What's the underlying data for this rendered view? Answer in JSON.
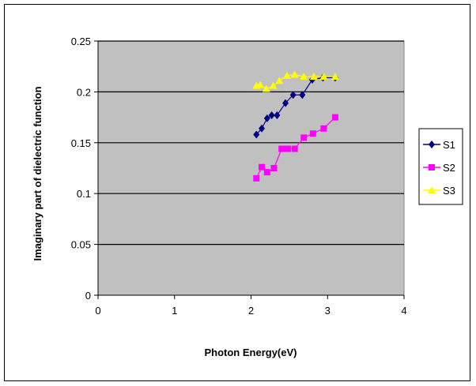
{
  "chart_data": {
    "type": "line",
    "title": "",
    "xlabel": "Photon Energy(eV)",
    "ylabel": "Imaginary part of dielectric function",
    "xlim": [
      0,
      4
    ],
    "ylim": [
      0,
      0.25
    ],
    "x_ticks": [
      "0",
      "1",
      "2",
      "3",
      "4"
    ],
    "y_ticks": [
      "0",
      "0.05",
      "0.1",
      "0.15",
      "0.2",
      "0.25"
    ],
    "grid": "horizontal major gridlines",
    "plot_background": "#c0c0c0",
    "legend_position": "right",
    "series": [
      {
        "name": "S1",
        "color": "#000080",
        "marker": "diamond",
        "x": [
          2.07,
          2.14,
          2.21,
          2.27,
          2.34,
          2.45,
          2.55,
          2.67,
          2.8,
          2.94,
          3.1
        ],
        "y": [
          0.158,
          0.164,
          0.174,
          0.177,
          0.177,
          0.189,
          0.197,
          0.197,
          0.212,
          0.214,
          0.214
        ]
      },
      {
        "name": "S2",
        "color": "#ff00ff",
        "marker": "square",
        "x": [
          2.07,
          2.14,
          2.21,
          2.3,
          2.4,
          2.48,
          2.57,
          2.69,
          2.81,
          2.95,
          3.1
        ],
        "y": [
          0.115,
          0.126,
          0.121,
          0.125,
          0.144,
          0.144,
          0.144,
          0.155,
          0.159,
          0.164,
          0.175
        ]
      },
      {
        "name": "S3",
        "color": "#ffff00",
        "marker": "triangle",
        "x": [
          2.07,
          2.12,
          2.2,
          2.29,
          2.37,
          2.47,
          2.57,
          2.69,
          2.82,
          2.95,
          3.1
        ],
        "y": [
          0.206,
          0.207,
          0.203,
          0.206,
          0.211,
          0.216,
          0.217,
          0.215,
          0.215,
          0.215,
          0.215
        ]
      }
    ]
  }
}
